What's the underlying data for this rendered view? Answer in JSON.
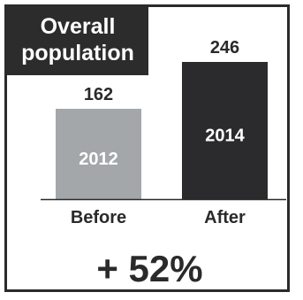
{
  "chart_data": {
    "type": "bar",
    "title_lines": [
      "Overall",
      "population"
    ],
    "categories": [
      "Before",
      "After"
    ],
    "bar_labels": [
      "2012",
      "2014"
    ],
    "values": [
      162,
      246
    ],
    "ylim": [
      0,
      246
    ],
    "colors": [
      "#a3a7aa",
      "#2b2b2d"
    ],
    "annotation": "+ 52%",
    "grid": false
  }
}
